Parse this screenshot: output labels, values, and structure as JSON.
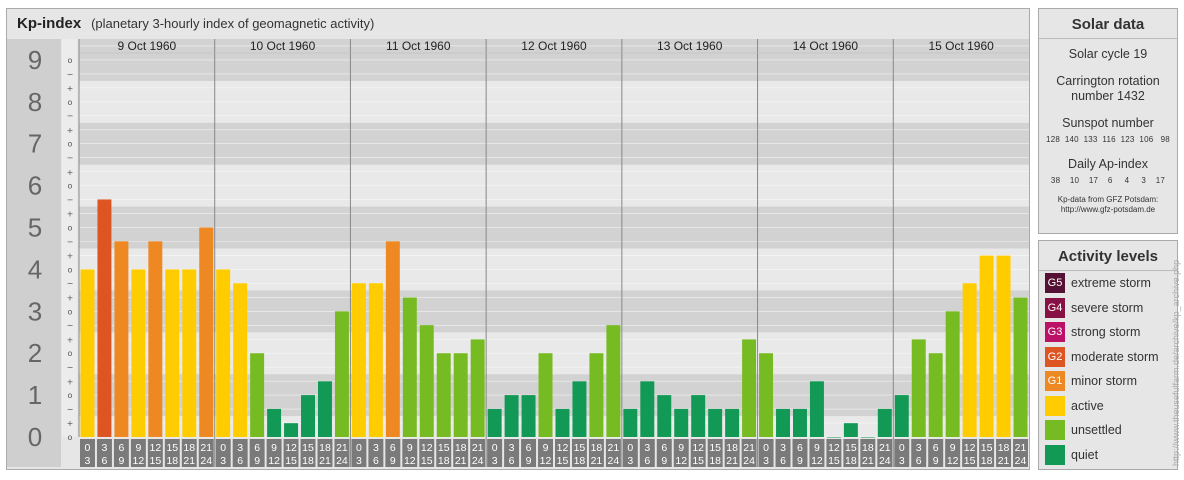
{
  "header": {
    "title": "Kp-index",
    "subtitle": "(planetary 3-hourly index of geomagnetic activity)"
  },
  "chart_data": {
    "type": "bar",
    "ylim": [
      0,
      9
    ],
    "y_ticks": [
      "0",
      "1",
      "2",
      "3",
      "4",
      "5",
      "6",
      "7",
      "8",
      "9"
    ],
    "minor_labels": [
      "o",
      "+",
      "−",
      "o",
      "+",
      "−",
      "o",
      "+",
      "−",
      "o",
      "+",
      "−",
      "o",
      "+",
      "−",
      "o",
      "+",
      "−",
      "o",
      "+",
      "−",
      "o",
      "+",
      "−",
      "o",
      "+",
      "−",
      "o"
    ],
    "days": [
      "9 Oct 1960",
      "10 Oct 1960",
      "11 Oct 1960",
      "12 Oct 1960",
      "13 Oct 1960",
      "14 Oct 1960",
      "15 Oct 1960"
    ],
    "interval_labels": [
      [
        "0",
        "3"
      ],
      [
        "3",
        "6"
      ],
      [
        "6",
        "9"
      ],
      [
        "9",
        "12"
      ],
      [
        "12",
        "15"
      ],
      [
        "15",
        "18"
      ],
      [
        "18",
        "21"
      ],
      [
        "21",
        "24"
      ]
    ],
    "values": [
      4.0,
      5.67,
      4.67,
      4.0,
      4.67,
      4.0,
      4.0,
      5.0,
      4.0,
      3.67,
      2.0,
      0.67,
      0.33,
      1.0,
      1.33,
      3.0,
      3.67,
      3.67,
      4.67,
      3.33,
      2.67,
      2.0,
      2.0,
      2.33,
      0.67,
      1.0,
      1.0,
      2.0,
      0.67,
      1.33,
      2.0,
      2.67,
      0.67,
      1.33,
      1.0,
      0.67,
      1.0,
      0.67,
      0.67,
      2.33,
      2.0,
      0.67,
      0.67,
      1.33,
      0.0,
      0.33,
      0.0,
      0.67,
      1.0,
      2.33,
      2.0,
      3.0,
      3.67,
      4.33,
      4.33,
      3.33
    ],
    "colors": {
      "quiet": "#119955",
      "unsettled": "#77bb22",
      "active": "#ffcc00",
      "G1": "#ee8822",
      "G2": "#dd5522",
      "G3": "#bb1166",
      "G4": "#881144",
      "G5": "#551133"
    }
  },
  "solar": {
    "title": "Solar data",
    "cycle": "Solar cycle 19",
    "carrington_1": "Carrington rotation",
    "carrington_2": "number 1432",
    "sunspot_title": "Sunspot number",
    "sunspot_values": "128  140  133  116  123  106   98",
    "ap_title": "Daily Ap-index",
    "ap_values": "38    10    17    6     4     3    17",
    "source_1": "Kp-data from GFZ Potsdam:",
    "source_2": "http://www.gfz-potsdam.de"
  },
  "levels": {
    "title": "Activity levels",
    "items": [
      {
        "code": "G5",
        "label": "extreme storm",
        "color": "#551133"
      },
      {
        "code": "G4",
        "label": "severe storm",
        "color": "#881144"
      },
      {
        "code": "G3",
        "label": "strong storm",
        "color": "#bb1166"
      },
      {
        "code": "G2",
        "label": "moderate storm",
        "color": "#dd5522"
      },
      {
        "code": "G1",
        "label": "minor storm",
        "color": "#ee8822"
      },
      {
        "code": "",
        "label": "active",
        "color": "#ffcc00"
      },
      {
        "code": "",
        "label": "unsettled",
        "color": "#77bb22"
      },
      {
        "code": "",
        "label": "quiet",
        "color": "#119955"
      }
    ]
  },
  "credit": "http://www.theusefulfarm.de/archive/kp_archive.php"
}
